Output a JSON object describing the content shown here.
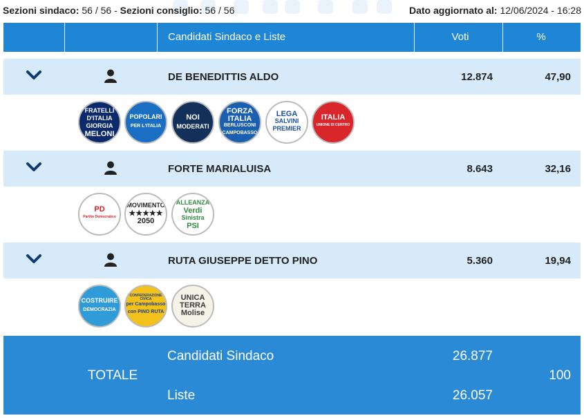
{
  "header_info": {
    "sezioni_sindaco_label": "Sezioni sindaco:",
    "sezioni_sindaco_value": "56 / 56",
    "separator": "-",
    "sezioni_consiglio_label": "Sezioni consiglio:",
    "sezioni_consiglio_value": "56 / 56",
    "updated_label": "Dato aggiornato al:",
    "updated_value": "12/06/2024 - 16:28"
  },
  "table_header": {
    "candidates": "Candidati Sindaco e Liste",
    "votes": "Voti",
    "percent": "%"
  },
  "candidates": [
    {
      "name": "DE BENEDITTIS ALDO",
      "votes": "12.874",
      "percent": "47,90",
      "lists": [
        {
          "icon": "fratelli-ditalia-logo",
          "line1": "FRATELLI",
          "line2": "D'ITALIA",
          "line3": "GIORGIA",
          "line4": "MELONI",
          "bg": "#0b2a6b",
          "fg": "#ffffff"
        },
        {
          "icon": "popolari-per-litalia-logo",
          "line1": "POPOLARI",
          "line2": "PER L'ITALIA",
          "line3": "",
          "line4": "",
          "bg": "#1b6fc2",
          "fg": "#ffffff"
        },
        {
          "icon": "noi-moderati-logo",
          "line1": "NOI",
          "line2": "MODERATI",
          "line3": "",
          "line4": "",
          "bg": "#12305a",
          "fg": "#ffffff"
        },
        {
          "icon": "forza-italia-berlusconi-logo",
          "line1": "FORZA",
          "line2": "ITALIA",
          "line3": "BERLUSCONI",
          "line4": "CAMPOBASSO",
          "bg": "#1a5fb0",
          "fg": "#ffffff"
        },
        {
          "icon": "lega-salvini-premier-logo",
          "line1": "LEGA",
          "line2": "SALVINI",
          "line3": "PREMIER",
          "line4": "",
          "bg": "#ffffff",
          "fg": "#1b4fa0"
        },
        {
          "icon": "udc-italia-logo",
          "line1": "ITALIA",
          "line2": "UNIONE DI CENTRO",
          "line3": "",
          "line4": "",
          "bg": "#d8262b",
          "fg": "#ffffff"
        }
      ]
    },
    {
      "name": "FORTE MARIALUISA",
      "votes": "8.643",
      "percent": "32,16",
      "lists": [
        {
          "icon": "partito-democratico-logo",
          "line1": "PD",
          "line2": "Partito Democratico",
          "line3": "",
          "line4": "",
          "bg": "#ffffff",
          "fg": "#d41e24"
        },
        {
          "icon": "movimento-2050-logo",
          "line1": "MOVIMENTO",
          "line2": "★★★★★",
          "line3": "2050",
          "line4": "",
          "bg": "#ffffff",
          "fg": "#222222"
        },
        {
          "icon": "alleanza-verdi-sinistra-logo",
          "line1": "ALLEANZA",
          "line2": "Verdi",
          "line3": "Sinistra",
          "line4": "PSI",
          "bg": "#ffffff",
          "fg": "#2e8b3e"
        }
      ]
    },
    {
      "name": "RUTA GIUSEPPE DETTO PINO",
      "votes": "5.360",
      "percent": "19,94",
      "lists": [
        {
          "icon": "costruire-democrazia-logo",
          "line1": "COSTRUIRE",
          "line2": "DEMOCRAZIA",
          "line3": "",
          "line4": "",
          "bg": "#2f9bd8",
          "fg": "#ffffff"
        },
        {
          "icon": "confederazione-civica-logo",
          "line1": "CONFEDERAZIONE CIVICA",
          "line2": "per Campobasso",
          "line3": "con PINO RUTA",
          "line4": "",
          "bg": "#f2c21a",
          "fg": "#1b3d8a"
        },
        {
          "icon": "unica-terra-molise-logo",
          "line1": "UNICA",
          "line2": "TERRA",
          "line3": "Molise",
          "line4": "",
          "bg": "#f5f2e8",
          "fg": "#3a3a3a"
        }
      ]
    }
  ],
  "totals": {
    "label": "TOTALE",
    "candidati_label": "Candidati Sindaco",
    "candidati_votes": "26.877",
    "liste_label": "Liste",
    "liste_votes": "26.057",
    "percent": "100"
  },
  "colors": {
    "header_blue": "#1e86d4",
    "row_light_blue": "#d6eafa",
    "total_blue": "#2b8ad6",
    "chevron_navy": "#0d3a73"
  }
}
